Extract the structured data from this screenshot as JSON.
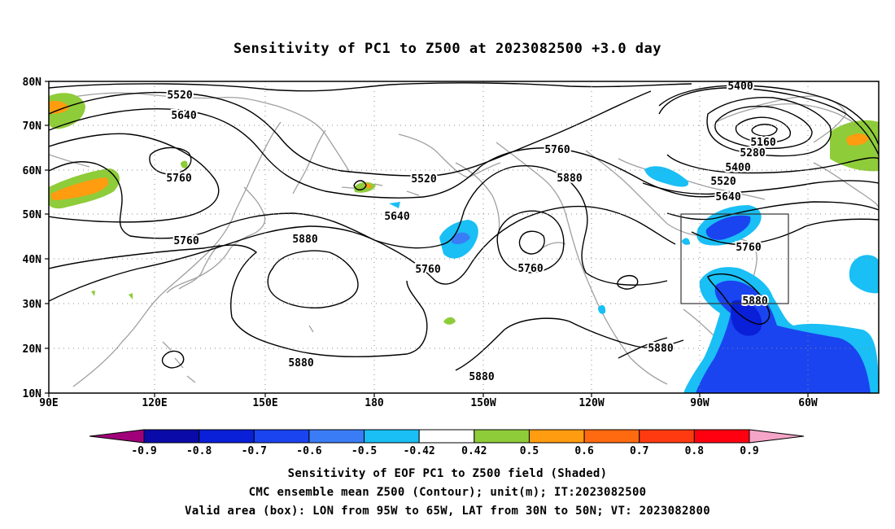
{
  "title": "Sensitivity of PC1 to Z500 at 2023082500 +3.0 day",
  "map": {
    "lat_labels": [
      "80N",
      "70N",
      "60N",
      "50N",
      "40N",
      "30N",
      "20N",
      "10N"
    ],
    "lon_labels": [
      "90E",
      "120E",
      "150E",
      "180",
      "150W",
      "120W",
      "90W",
      "60W"
    ],
    "contours": [
      {
        "id": "c5400a",
        "label": "5400"
      },
      {
        "id": "c5520a",
        "label": "5520"
      },
      {
        "id": "c5640a",
        "label": "5640"
      },
      {
        "id": "c5760a",
        "label": "5760"
      },
      {
        "id": "c5760b",
        "label": "5760"
      },
      {
        "id": "c5520b",
        "label": "5520"
      },
      {
        "id": "c5760c",
        "label": "5760"
      },
      {
        "id": "c5880a",
        "label": "5880"
      },
      {
        "id": "c5640b",
        "label": "5640"
      },
      {
        "id": "c5760d",
        "label": "5760"
      },
      {
        "id": "c5760e",
        "label": "5760"
      },
      {
        "id": "c5880b",
        "label": "5880"
      },
      {
        "id": "c5160",
        "label": "5160"
      },
      {
        "id": "c5280",
        "label": "5280"
      },
      {
        "id": "c5400b",
        "label": "5400"
      },
      {
        "id": "c5520c",
        "label": "5520"
      },
      {
        "id": "c5640c",
        "label": "5640"
      },
      {
        "id": "c5760f",
        "label": "5760"
      },
      {
        "id": "c5880c",
        "label": "5880"
      },
      {
        "id": "c5880d",
        "label": "5880"
      },
      {
        "id": "c5880e",
        "label": "5880"
      },
      {
        "id": "c5880f",
        "label": "5880"
      }
    ],
    "valid_box": {
      "lon_from": "95W",
      "lon_to": "65W",
      "lat_from": "30N",
      "lat_to": "50N"
    }
  },
  "colorbar": {
    "labels": [
      "-0.9",
      "-0.8",
      "-0.7",
      "-0.6",
      "-0.5",
      "-0.42",
      "0.42",
      "0.5",
      "0.6",
      "0.7",
      "0.8",
      "0.9"
    ],
    "colors": [
      "#a0007a",
      "#0a0aa8",
      "#0a1fd8",
      "#1a44f0",
      "#3a7cf5",
      "#19bff5",
      "#ffffff",
      "#8fcc3a",
      "#ff9c0f",
      "#ff6a10",
      "#ff3a10",
      "#ff0010",
      "#f5a5c8"
    ]
  },
  "captions": {
    "line1": "Sensitivity of EOF PC1 to Z500 field (Shaded)",
    "line2": "CMC ensemble mean Z500 (Contour); unit(m); IT:2023082500",
    "line3": "Valid area (box): LON from 95W to 65W, LAT from 30N to 50N; VT: 2023082800"
  }
}
